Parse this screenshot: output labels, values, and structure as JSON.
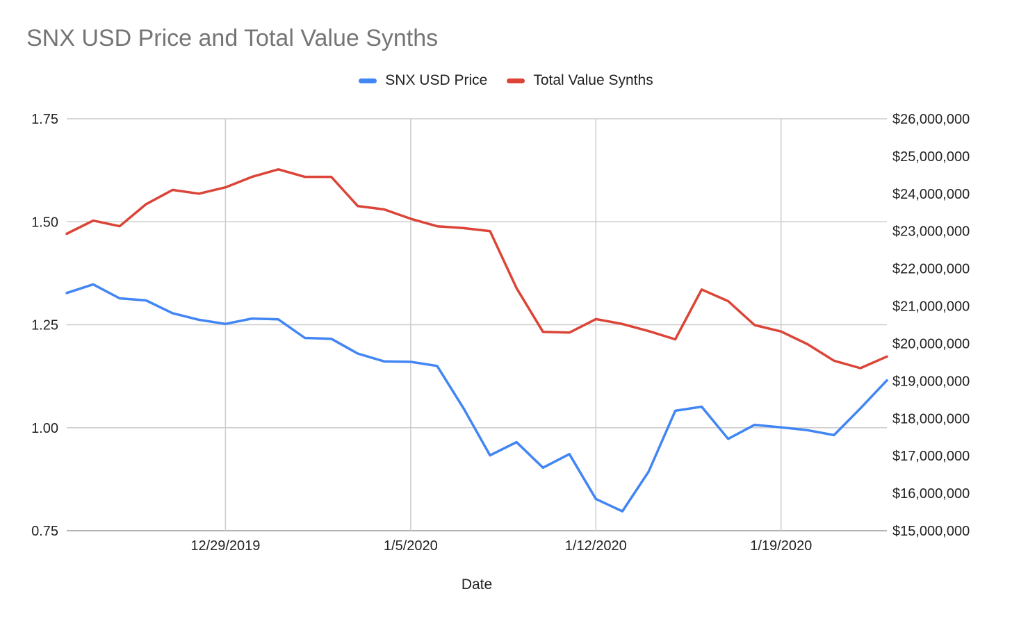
{
  "chart_data": {
    "type": "line",
    "title": "SNX USD Price and Total Value Synths",
    "xlabel": "Date",
    "x_tick_labels": [
      "12/29/2019",
      "1/5/2020",
      "1/12/2020",
      "1/19/2020"
    ],
    "x": [
      "12/23/2019",
      "12/24/2019",
      "12/25/2019",
      "12/26/2019",
      "12/27/2019",
      "12/28/2019",
      "12/29/2019",
      "12/30/2019",
      "12/31/2019",
      "1/1/2020",
      "1/2/2020",
      "1/3/2020",
      "1/4/2020",
      "1/5/2020",
      "1/6/2020",
      "1/7/2020",
      "1/8/2020",
      "1/9/2020",
      "1/10/2020",
      "1/11/2020",
      "1/12/2020",
      "1/13/2020",
      "1/14/2020",
      "1/15/2020",
      "1/16/2020",
      "1/17/2020",
      "1/18/2020",
      "1/19/2020",
      "1/20/2020",
      "1/21/2020",
      "1/22/2020",
      "1/23/2020"
    ],
    "y_left": {
      "ticks": [
        "1.75",
        "1.50",
        "1.25",
        "1.00",
        "0.75"
      ],
      "range": [
        0.75,
        1.75
      ]
    },
    "y_right": {
      "ticks": [
        "$26,000,000",
        "$25,000,000",
        "$24,000,000",
        "$23,000,000",
        "$22,000,000",
        "$21,000,000",
        "$20,000,000",
        "$19,000,000",
        "$18,000,000",
        "$17,000,000",
        "$16,000,000",
        "$15,000,000"
      ],
      "range": [
        15000000,
        26000000
      ]
    },
    "grid": true,
    "legend_position": "top-center",
    "series": [
      {
        "name": "SNX USD Price",
        "axis": "left",
        "color": "#4285f4",
        "values": [
          1.327,
          1.348,
          1.314,
          1.309,
          1.278,
          1.262,
          1.252,
          1.265,
          1.263,
          1.218,
          1.216,
          1.18,
          1.161,
          1.16,
          1.15,
          1.047,
          0.933,
          0.965,
          0.903,
          0.936,
          0.827,
          0.797,
          0.894,
          1.041,
          1.051,
          0.973,
          1.007,
          1.001,
          0.994,
          0.982,
          1.047,
          1.115
        ]
      },
      {
        "name": "Total Value Synths",
        "axis": "right",
        "color": "#db4437",
        "values": [
          22930000,
          23280000,
          23130000,
          23720000,
          24100000,
          24000000,
          24170000,
          24450000,
          24650000,
          24450000,
          24450000,
          23670000,
          23580000,
          23330000,
          23130000,
          23080000,
          23000000,
          21480000,
          20310000,
          20290000,
          20650000,
          20520000,
          20330000,
          20110000,
          21440000,
          21130000,
          20490000,
          20320000,
          19980000,
          19540000,
          19340000,
          19650000
        ]
      }
    ]
  }
}
